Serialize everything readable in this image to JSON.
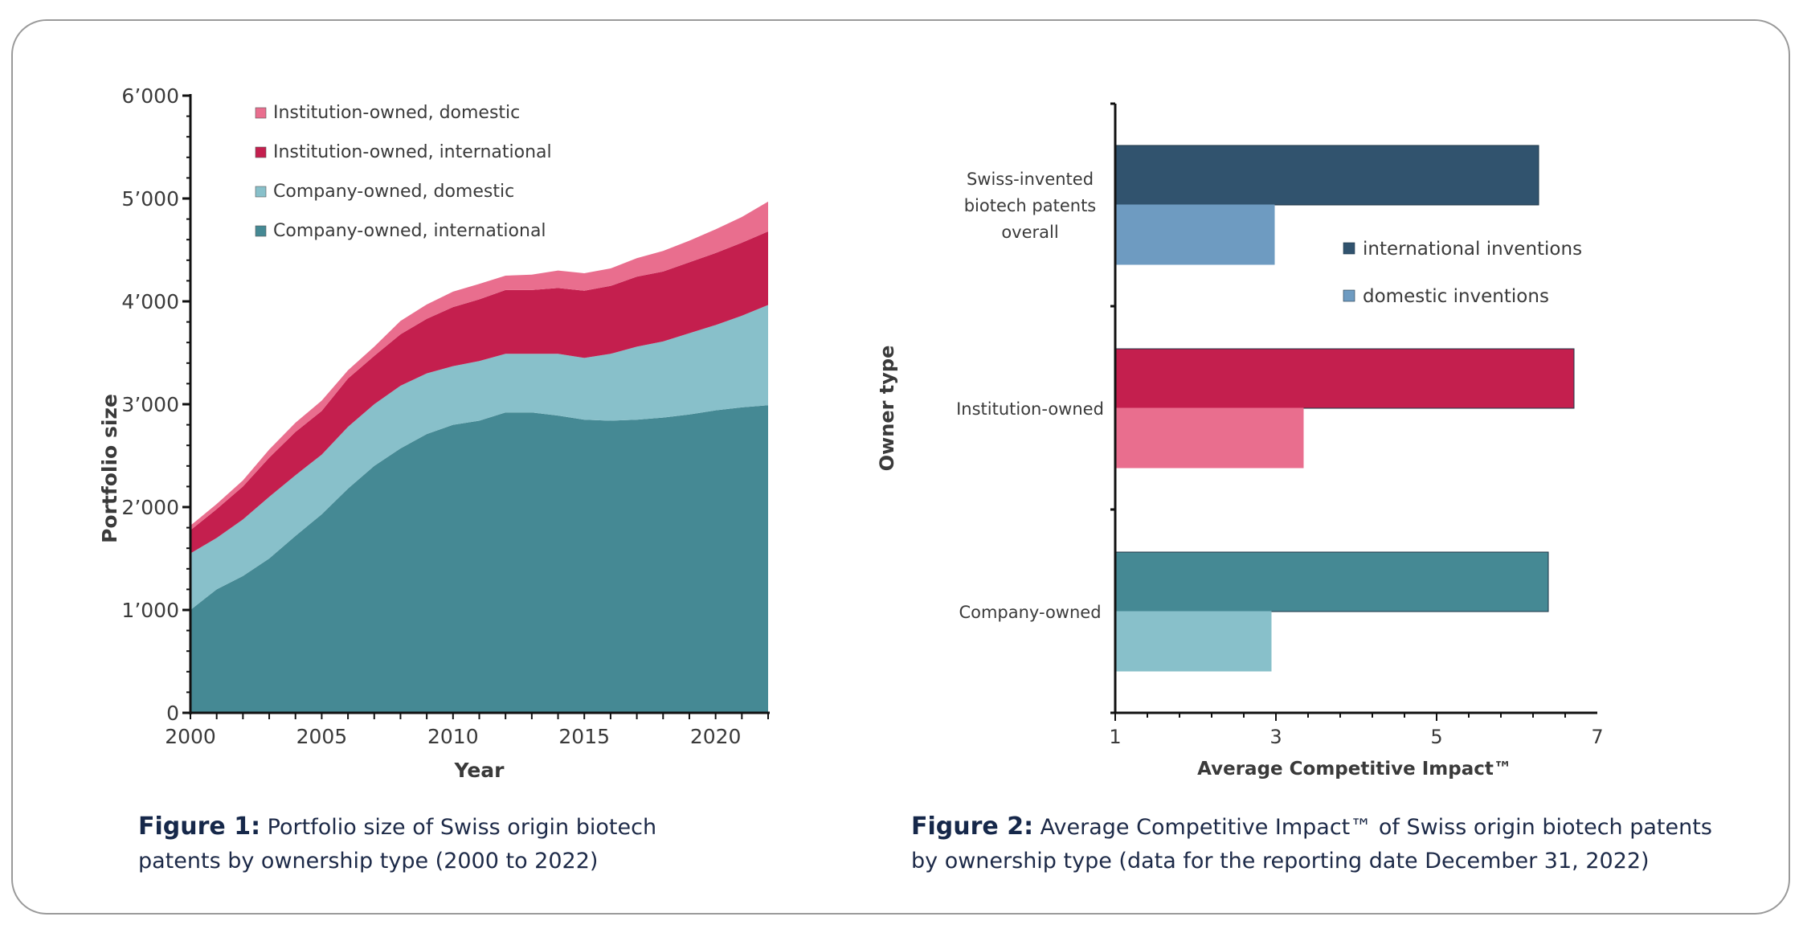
{
  "chart_data": [
    {
      "type": "area",
      "stacked": true,
      "xlabel": "Year",
      "ylabel": "Portfolio size",
      "x": [
        2000,
        2001,
        2002,
        2003,
        2004,
        2005,
        2006,
        2007,
        2008,
        2009,
        2010,
        2011,
        2012,
        2013,
        2014,
        2015,
        2016,
        2017,
        2018,
        2019,
        2020,
        2021,
        2022
      ],
      "xticks": [
        "2000",
        "2005",
        "2010",
        "2015",
        "2020"
      ],
      "xtick_values": [
        2000,
        2005,
        2010,
        2015,
        2020
      ],
      "yticks": [
        "0",
        "1’000",
        "2’000",
        "3’000",
        "4’000",
        "5’000",
        "6’000"
      ],
      "ytick_values": [
        0,
        1000,
        2000,
        3000,
        4000,
        5000,
        6000
      ],
      "xlim": [
        2000,
        2022
      ],
      "ylim": [
        0,
        6000
      ],
      "legend_position": "top-left",
      "grid": false,
      "series": [
        {
          "name": "Company-owned, international",
          "color": "#458994",
          "values": [
            1000,
            1200,
            1330,
            1500,
            1720,
            1930,
            2180,
            2400,
            2570,
            2710,
            2800,
            2840,
            2920,
            2920,
            2890,
            2850,
            2840,
            2850,
            2870,
            2900,
            2940,
            2970,
            2990
          ]
        },
        {
          "name": "Company-owned, domestic",
          "color": "#88c0ca",
          "values": [
            550,
            500,
            550,
            600,
            590,
            580,
            600,
            600,
            610,
            590,
            570,
            580,
            570,
            570,
            600,
            600,
            650,
            710,
            740,
            790,
            830,
            890,
            975
          ]
        },
        {
          "name": "Institution-owned, international",
          "color": "#c41f4e",
          "values": [
            225,
            280,
            320,
            380,
            420,
            425,
            470,
            470,
            500,
            530,
            574,
            600,
            620,
            620,
            640,
            654,
            660,
            680,
            680,
            690,
            700,
            710,
            715
          ]
        },
        {
          "name": "Institution-owned, domestic",
          "color": "#e96e8e",
          "values": [
            45,
            50,
            60,
            80,
            90,
            100,
            80,
            90,
            130,
            140,
            151,
            150,
            140,
            150,
            170,
            169,
            170,
            180,
            200,
            210,
            230,
            250,
            290
          ]
        }
      ]
    },
    {
      "type": "bar",
      "orientation": "horizontal",
      "xlabel": "Average Competitive Impact™",
      "ylabel": "Owner type",
      "xlim": [
        1,
        7
      ],
      "xticks": [
        "1",
        "3",
        "5",
        "7"
      ],
      "xtick_values": [
        1,
        3,
        5,
        7
      ],
      "legend_position": "right",
      "grid": false,
      "categories": [
        {
          "label_lines": [
            "Swiss-invented",
            "biotech patents",
            "overall"
          ],
          "international": 6.27,
          "domestic": 2.98,
          "colors": {
            "international": "#31536e",
            "domestic": "#6e9bc1"
          }
        },
        {
          "label_lines": [
            "Institution-owned"
          ],
          "international": 6.71,
          "domestic": 3.34,
          "colors": {
            "international": "#c41f4e",
            "domestic": "#e96e8e"
          }
        },
        {
          "label_lines": [
            "Company-owned"
          ],
          "international": 6.39,
          "domestic": 2.94,
          "colors": {
            "international": "#458994",
            "domestic": "#88c0ca"
          }
        }
      ],
      "legend": [
        {
          "name": "international inventions",
          "color": "#31536e"
        },
        {
          "name": "domestic inventions",
          "color": "#6e9bc1"
        }
      ]
    }
  ],
  "captions": {
    "fig1_label": "Figure 1:",
    "fig1_line1": " Portfolio size of Swiss origin biotech",
    "fig1_line2": "patents by ownership type (2000 to 2022)",
    "fig2_label": "Figure 2:",
    "fig2_line1": " Average Competitive Impact™ of Swiss origin biotech patents",
    "fig2_line2": "by ownership type (data for the reporting date December 31, 2022)"
  }
}
